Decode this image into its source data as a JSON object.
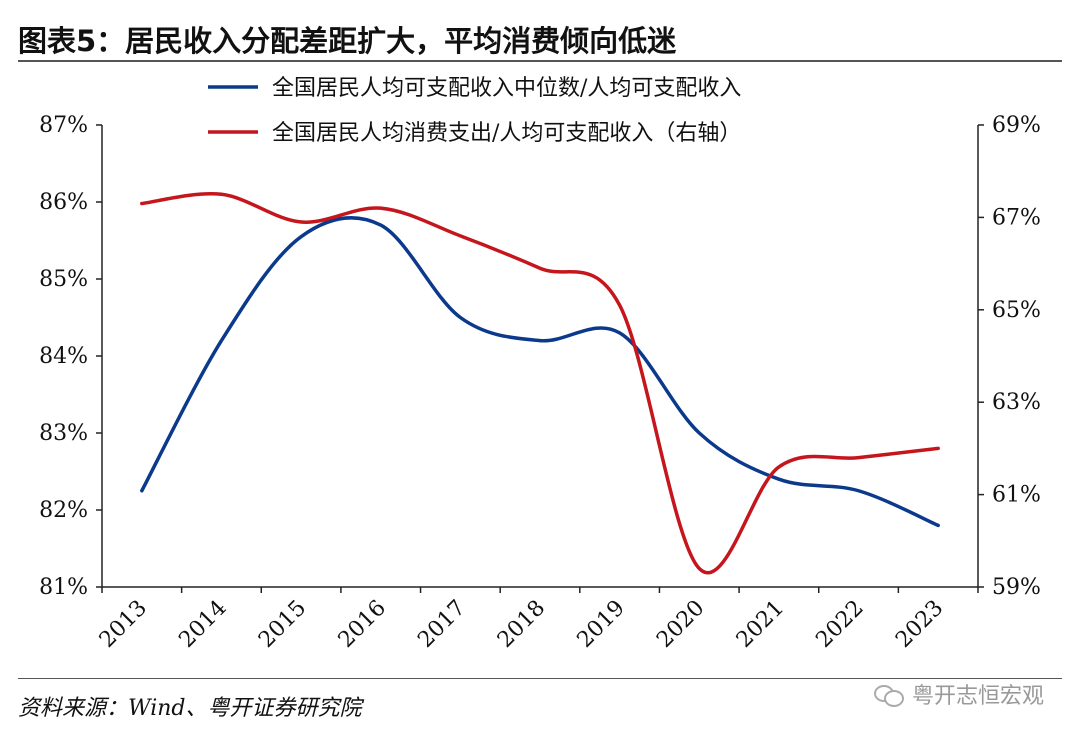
{
  "header": {
    "title": "图表5：居民收入分配差距扩大，平均消费倾向低迷"
  },
  "footer": {
    "source": "资料来源：Wind、粤开证券研究院",
    "watermark": "粤开志恒宏观"
  },
  "colors": {
    "blue": "#0b3a8c",
    "red": "#c4161c"
  },
  "chart_data": {
    "type": "line",
    "x": [
      "2013",
      "2014",
      "2015",
      "2016",
      "2017",
      "2018",
      "2019",
      "2020",
      "2021",
      "2022",
      "2023"
    ],
    "series": [
      {
        "name": "全国居民人均可支配收入中位数/人均可支配收入",
        "axis": "left",
        "values": [
          82.25,
          84.2,
          85.55,
          85.7,
          84.5,
          84.2,
          84.3,
          83.0,
          82.4,
          82.25,
          81.8
        ]
      },
      {
        "name": "全国居民人均消费支出/人均可支配收入（右轴）",
        "axis": "right",
        "values": [
          67.3,
          67.5,
          66.9,
          67.2,
          66.6,
          65.9,
          65.1,
          59.4,
          61.6,
          61.8,
          62.0
        ]
      }
    ],
    "left_axis": {
      "min": 81,
      "max": 87,
      "ticks": [
        "81%",
        "82%",
        "83%",
        "84%",
        "85%",
        "86%",
        "87%"
      ]
    },
    "right_axis": {
      "min": 59,
      "max": 69,
      "ticks": [
        "59%",
        "61%",
        "63%",
        "65%",
        "67%",
        "69%"
      ]
    },
    "grid": false,
    "legend_position": "top"
  }
}
